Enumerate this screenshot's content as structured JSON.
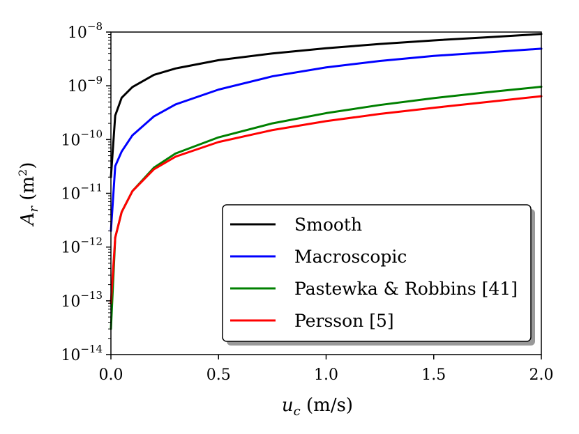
{
  "chart_data": {
    "type": "line",
    "xlabel_var": "u",
    "xlabel_sub": "c",
    "xlabel_unit": " (m/s)",
    "ylabel_var": "A",
    "ylabel_sub": "r",
    "ylabel_unit_open": " (m",
    "ylabel_unit_exp": "2",
    "ylabel_unit_close": ")",
    "xlim": [
      0,
      2.0
    ],
    "ylim_log10": [
      -14,
      -8
    ],
    "x_ticks": [
      {
        "value": 0.0,
        "label": "0.0"
      },
      {
        "value": 0.5,
        "label": "0.5"
      },
      {
        "value": 1.0,
        "label": "1.0"
      },
      {
        "value": 1.5,
        "label": "1.5"
      },
      {
        "value": 2.0,
        "label": "2.0"
      }
    ],
    "y_ticks": [
      {
        "exp": -14,
        "base": "10",
        "sup": "−14"
      },
      {
        "exp": -13,
        "base": "10",
        "sup": "−13"
      },
      {
        "exp": -12,
        "base": "10",
        "sup": "−12"
      },
      {
        "exp": -11,
        "base": "10",
        "sup": "−11"
      },
      {
        "exp": -10,
        "base": "10",
        "sup": "−10"
      },
      {
        "exp": -9,
        "base": "10",
        "sup": "−9"
      },
      {
        "exp": -8,
        "base": "10",
        "sup": "−8"
      }
    ],
    "legend_position": "lower-right",
    "series": [
      {
        "name": "Smooth",
        "color": "#000000",
        "points": [
          [
            0.0,
            2e-11
          ],
          [
            0.02,
            2.8e-10
          ],
          [
            0.05,
            6e-10
          ],
          [
            0.1,
            9.5e-10
          ],
          [
            0.2,
            1.6e-09
          ],
          [
            0.3,
            2.1e-09
          ],
          [
            0.5,
            3e-09
          ],
          [
            0.75,
            4e-09
          ],
          [
            1.0,
            5e-09
          ],
          [
            1.25,
            6e-09
          ],
          [
            1.5,
            7e-09
          ],
          [
            1.75,
            8e-09
          ],
          [
            2.0,
            9.2e-09
          ]
        ]
      },
      {
        "name": "Macroscopic",
        "color": "#0000ff",
        "points": [
          [
            0.0,
            2e-12
          ],
          [
            0.02,
            3.2e-11
          ],
          [
            0.05,
            6e-11
          ],
          [
            0.1,
            1.2e-10
          ],
          [
            0.2,
            2.7e-10
          ],
          [
            0.3,
            4.5e-10
          ],
          [
            0.5,
            8.5e-10
          ],
          [
            0.75,
            1.5e-09
          ],
          [
            1.0,
            2.2e-09
          ],
          [
            1.25,
            2.9e-09
          ],
          [
            1.5,
            3.6e-09
          ],
          [
            1.75,
            4.2e-09
          ],
          [
            2.0,
            4.9e-09
          ]
        ]
      },
      {
        "name": "Pastewka & Robbins [41]",
        "color": "#008000",
        "points": [
          [
            0.0,
            3e-14
          ],
          [
            0.02,
            1.5e-12
          ],
          [
            0.05,
            4.5e-12
          ],
          [
            0.1,
            1.1e-11
          ],
          [
            0.2,
            3e-11
          ],
          [
            0.3,
            5.5e-11
          ],
          [
            0.5,
            1.1e-10
          ],
          [
            0.75,
            2e-10
          ],
          [
            1.0,
            3.1e-10
          ],
          [
            1.25,
            4.4e-10
          ],
          [
            1.5,
            5.9e-10
          ],
          [
            1.75,
            7.6e-10
          ],
          [
            2.0,
            9.6e-10
          ]
        ]
      },
      {
        "name": "Persson [5]",
        "color": "#ff0000",
        "points": [
          [
            0.0,
            9e-14
          ],
          [
            0.02,
            1.5e-12
          ],
          [
            0.05,
            4.5e-12
          ],
          [
            0.1,
            1.1e-11
          ],
          [
            0.2,
            2.8e-11
          ],
          [
            0.3,
            4.8e-11
          ],
          [
            0.5,
            9e-11
          ],
          [
            0.75,
            1.5e-10
          ],
          [
            1.0,
            2.2e-10
          ],
          [
            1.25,
            3e-10
          ],
          [
            1.5,
            3.9e-10
          ],
          [
            1.75,
            5e-10
          ],
          [
            2.0,
            6.4e-10
          ]
        ]
      }
    ]
  }
}
